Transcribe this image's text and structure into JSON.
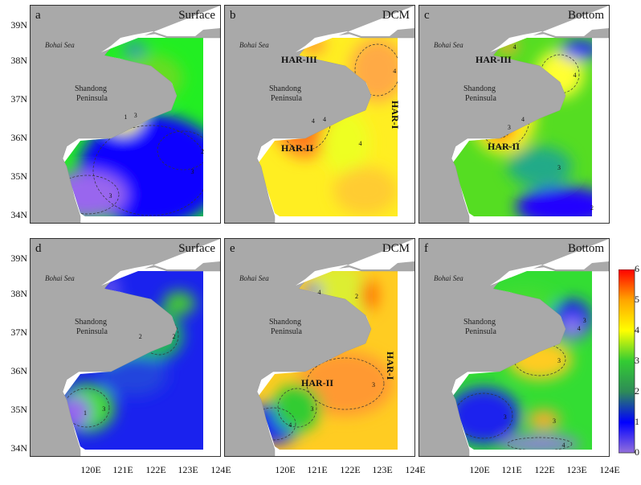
{
  "panels": [
    {
      "letter": "a",
      "title": "Surface",
      "har": []
    },
    {
      "letter": "b",
      "title": "DCM",
      "har": [
        "HAR-III",
        "HAR-II",
        "HAR-I"
      ]
    },
    {
      "letter": "c",
      "title": "Bottom",
      "har": [
        "HAR-III",
        "HAR-II"
      ]
    },
    {
      "letter": "d",
      "title": "Surface",
      "har": []
    },
    {
      "letter": "e",
      "title": "DCM",
      "har": [
        "HAR-II",
        "HAR-I"
      ]
    },
    {
      "letter": "f",
      "title": "Bottom",
      "har": []
    }
  ],
  "place_labels": {
    "bohai_sea": "Bohai Sea",
    "shandong_line1": "Shandong",
    "shandong_line2": "Peninsula"
  },
  "lat_labels": [
    "39N",
    "38N",
    "37N",
    "36N",
    "35N",
    "34N"
  ],
  "lon_labels": [
    "120E",
    "121E",
    "122E",
    "123E",
    "124E"
  ],
  "colorbar": {
    "ticks": [
      "6",
      "5",
      "4",
      "3",
      "2",
      "1",
      "0"
    ],
    "min": 0,
    "max": 6,
    "colors": [
      "#9370db",
      "#0000ff",
      "#2e8b57",
      "#33cc33",
      "#ffff00",
      "#ffa500",
      "#ff0000"
    ]
  },
  "contour_labels": {
    "a": [
      "3",
      "3",
      "2",
      "3",
      "1"
    ],
    "b": [
      "4",
      "4",
      "4",
      "4"
    ],
    "c": [
      "4",
      "3",
      "4",
      "2",
      "3",
      "4"
    ],
    "d": [
      "2",
      "3",
      "2",
      "1"
    ],
    "e": [
      "3",
      "4",
      "3",
      "2",
      "4"
    ],
    "f": [
      "3",
      "4",
      "3",
      "3",
      "4",
      "3"
    ]
  }
}
